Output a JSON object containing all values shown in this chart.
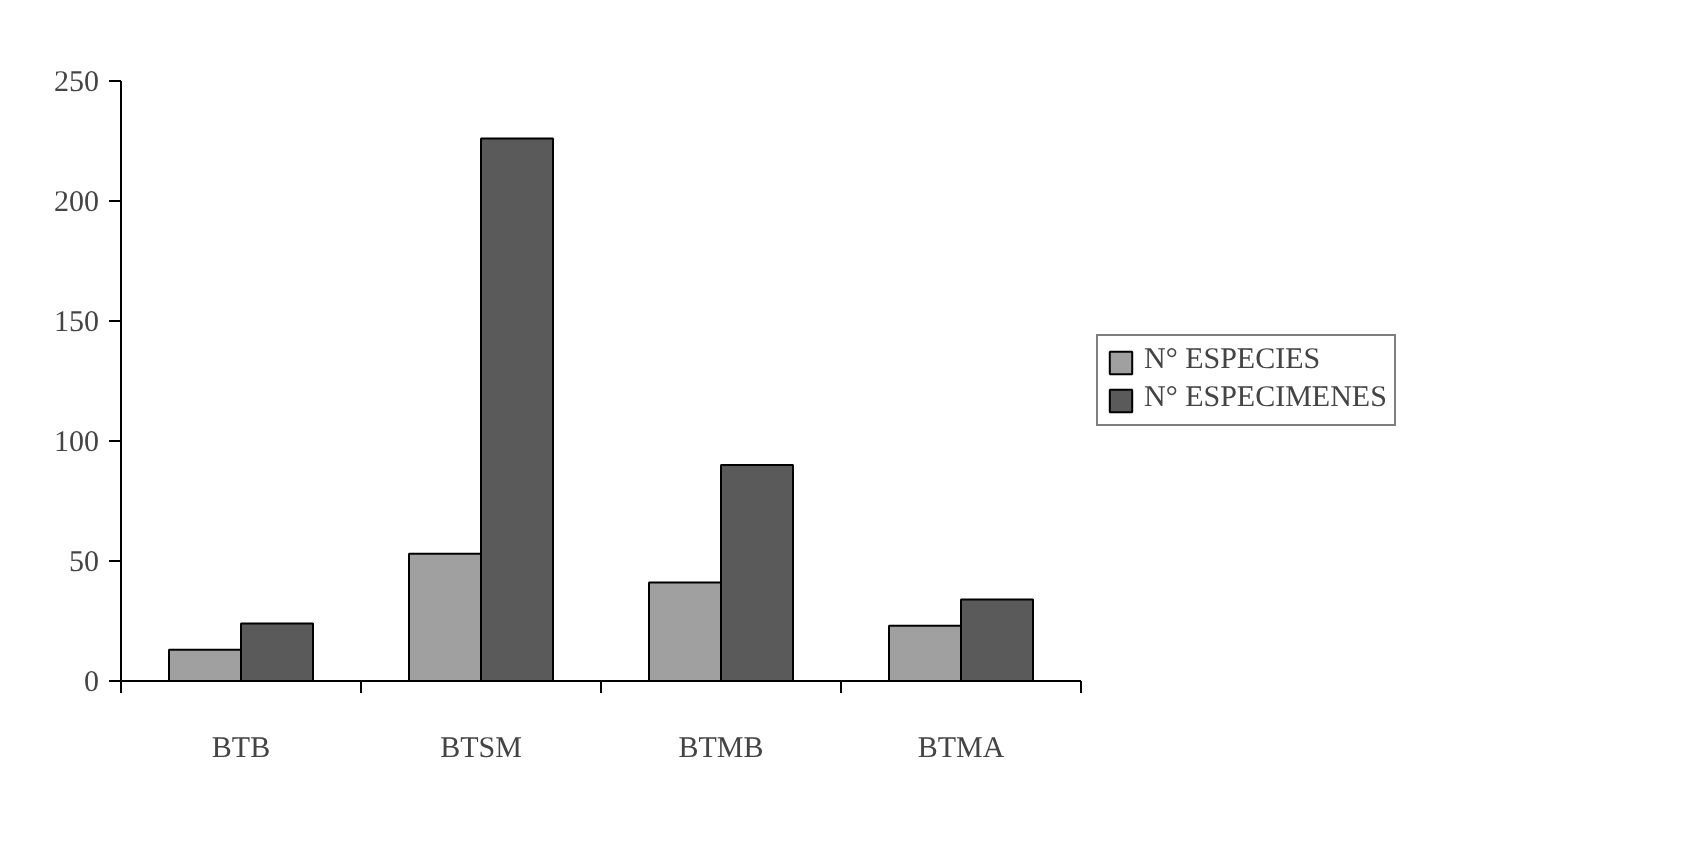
{
  "chart_data": {
    "type": "bar",
    "categories": [
      "BTB",
      "BTSM",
      "BTMB",
      "BTMA"
    ],
    "series": [
      {
        "name": "N° ESPECIES",
        "color": "#a0a0a0",
        "values": [
          13,
          53,
          41,
          23
        ]
      },
      {
        "name": "N° ESPECIMENES",
        "color": "#5a5a5a",
        "values": [
          24,
          226,
          90,
          34
        ]
      }
    ],
    "ylim": [
      0,
      250
    ],
    "yticks": [
      0,
      50,
      100,
      150,
      200,
      250
    ],
    "grid": false,
    "legend": "right"
  }
}
